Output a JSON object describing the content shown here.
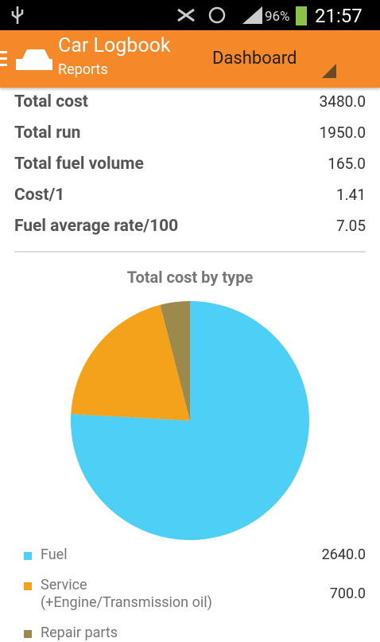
{
  "status_bar": {
    "battery": "96%",
    "time": "21:57"
  },
  "app_bar": {
    "title": "Car Logbook",
    "subtitle": "Reports",
    "spinner": "Dashboard"
  },
  "summary": [
    {
      "label": "Total cost",
      "value": "3480.0"
    },
    {
      "label": "Total run",
      "value": "1950.0"
    },
    {
      "label": "Total fuel volume",
      "value": "165.0"
    },
    {
      "label": "Cost/1",
      "value": "1.41"
    },
    {
      "label": "Fuel average rate/100",
      "value": "7.05"
    }
  ],
  "chart_data": {
    "type": "pie",
    "title": "Total cost by type",
    "categories": [
      "Fuel",
      "Service\n(+Engine/Transmission oil)",
      "Repair parts"
    ],
    "values": [
      2640,
      700,
      140
    ],
    "value_labels": [
      "2640.0",
      "700.0",
      null
    ],
    "colors": [
      "#4ecff5",
      "#f4a21b",
      "#9d894b"
    ]
  }
}
